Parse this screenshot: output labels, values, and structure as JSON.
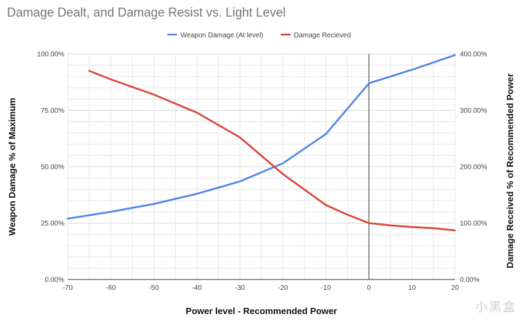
{
  "chart_data": {
    "type": "line",
    "title": "Damage Dealt, and Damage Resist vs. Light Level",
    "xlabel": "Power level - Recommended Power",
    "ylabel_left": "Weapon Damage % of Maximum",
    "ylabel_right": "Damage Received % of Recommended Power",
    "xlim": [
      -70,
      20
    ],
    "ylim_left": [
      0,
      100
    ],
    "ylim_right": [
      0,
      400
    ],
    "x_ticks": [
      -70,
      -60,
      -50,
      -40,
      -30,
      -20,
      -10,
      0,
      10,
      20
    ],
    "x_tick_labels": [
      "-70",
      "-60",
      "-50",
      "-40",
      "-30",
      "-20",
      "-10",
      "0",
      "10",
      "20"
    ],
    "y_left_ticks": [
      0,
      25,
      50,
      75,
      100
    ],
    "y_left_tick_labels": [
      "0.00%",
      "25.00%",
      "50.00%",
      "75.00%",
      "100.00%"
    ],
    "y_right_ticks": [
      0,
      100,
      200,
      300,
      400
    ],
    "y_right_tick_labels": [
      "0.00%",
      "100.00%",
      "200.00%",
      "300.00%",
      "400.00%"
    ],
    "grid": true,
    "legend_position": "top-center",
    "series": [
      {
        "name": "Weapon Damage (At level)",
        "axis": "left",
        "color": "#4a86e8",
        "x": [
          -70,
          -60,
          -50,
          -40,
          -30,
          -20,
          -10,
          0,
          10,
          20
        ],
        "y": [
          27,
          30,
          33.5,
          38,
          43.5,
          51.5,
          64.5,
          87,
          93,
          99.5
        ]
      },
      {
        "name": "Damage Recieved",
        "axis": "right",
        "color": "#db4437",
        "x": [
          -65,
          -60,
          -50,
          -40,
          -30,
          -20,
          -10,
          -5,
          0,
          5,
          10,
          15,
          20
        ],
        "y": [
          370,
          355,
          328,
          296,
          252,
          187,
          132,
          115,
          100,
          96,
          93,
          91,
          87
        ]
      }
    ]
  },
  "marker": {
    "x": 0,
    "color": "#555555"
  },
  "watermark": "小黑盒"
}
